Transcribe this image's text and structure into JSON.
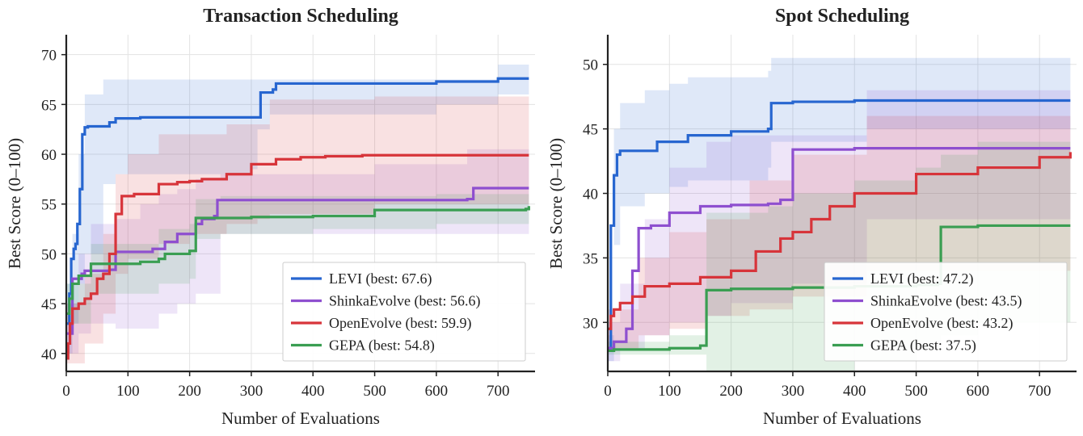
{
  "chart_data": [
    {
      "type": "line",
      "title": "Transaction Scheduling",
      "xlabel": "Number of Evaluations",
      "ylabel": "Best Score (0–100)",
      "xlim": [
        0,
        760
      ],
      "ylim": [
        38.2,
        72.0
      ],
      "xticks": [
        0,
        100,
        200,
        300,
        400,
        500,
        600,
        700
      ],
      "yticks": [
        40,
        45,
        50,
        55,
        60,
        65,
        70
      ],
      "grid": true,
      "legend_position": "lower-right",
      "series": [
        {
          "name": "LEVI (best: 67.6)",
          "color": "#2766d0",
          "x": [
            0,
            5,
            8,
            12,
            15,
            18,
            22,
            26,
            30,
            35,
            70,
            80,
            120,
            315,
            335,
            340,
            600,
            700,
            750
          ],
          "y": [
            43.0,
            46.0,
            49.5,
            50.5,
            51.0,
            53.0,
            56.5,
            62.0,
            62.7,
            62.8,
            63.2,
            63.6,
            63.7,
            66.2,
            66.5,
            67.1,
            67.3,
            67.6,
            67.6
          ],
          "band_x": [
            0,
            10,
            20,
            30,
            60,
            80,
            300,
            310,
            330,
            340,
            440,
            600,
            700,
            750
          ],
          "band_low": [
            40.0,
            43.0,
            47.0,
            50.0,
            57.0,
            58.0,
            58.5,
            62.5,
            64.0,
            64.0,
            64.0,
            65.0,
            66.0,
            66.5
          ],
          "band_high": [
            47.0,
            52.0,
            60.0,
            66.0,
            67.5,
            67.5,
            67.5,
            67.5,
            67.5,
            67.5,
            67.5,
            67.5,
            69.0,
            69.0
          ]
        },
        {
          "name": "ShinkaEvolve (best: 56.6)",
          "color": "#8e4fcf",
          "x": [
            0,
            10,
            25,
            30,
            70,
            80,
            140,
            160,
            180,
            210,
            220,
            240,
            245,
            650,
            660,
            750
          ],
          "y": [
            42.0,
            47.5,
            48.0,
            48.3,
            48.4,
            50.2,
            50.5,
            51.2,
            52.0,
            53.0,
            53.5,
            53.8,
            55.4,
            55.5,
            56.6,
            56.6
          ],
          "band_x": [
            0,
            20,
            40,
            80,
            120,
            150,
            180,
            210,
            240,
            250,
            500,
            650,
            750
          ],
          "band_low": [
            40.0,
            42.0,
            43.0,
            42.5,
            42.5,
            44.0,
            45.0,
            46.0,
            46.0,
            52.0,
            52.0,
            52.0,
            52.5
          ],
          "band_high": [
            45.0,
            50.0,
            53.0,
            53.5,
            55.0,
            56.0,
            56.5,
            57.5,
            57.5,
            58.0,
            59.0,
            60.5,
            61.0
          ]
        },
        {
          "name": "OpenEvolve (best: 59.9)",
          "color": "#d7343a",
          "x": [
            0,
            3,
            6,
            10,
            20,
            30,
            40,
            50,
            60,
            70,
            80,
            90,
            110,
            150,
            180,
            200,
            220,
            260,
            300,
            340,
            380,
            420,
            480,
            750
          ],
          "y": [
            39.5,
            41.0,
            43.0,
            44.5,
            45.0,
            45.5,
            46.0,
            47.5,
            48.0,
            50.0,
            54.0,
            55.8,
            56.0,
            57.0,
            57.2,
            57.3,
            57.5,
            58.0,
            59.0,
            59.5,
            59.7,
            59.8,
            59.9,
            59.9
          ],
          "band_x": [
            0,
            30,
            60,
            80,
            100,
            150,
            200,
            260,
            310,
            330,
            500,
            750
          ],
          "band_low": [
            39.0,
            41.0,
            44.0,
            48.0,
            49.5,
            51.0,
            52.0,
            53.0,
            53.5,
            54.0,
            55.0,
            55.5
          ],
          "band_high": [
            45.0,
            48.0,
            52.0,
            58.0,
            60.0,
            62.0,
            62.0,
            63.0,
            63.0,
            65.5,
            65.8,
            65.8
          ]
        },
        {
          "name": "GEPA (best: 54.8)",
          "color": "#3a9e52",
          "x": [
            0,
            5,
            10,
            20,
            40,
            60,
            100,
            120,
            150,
            160,
            200,
            210,
            300,
            400,
            500,
            745,
            750
          ],
          "y": [
            44.0,
            45.5,
            47.0,
            47.8,
            49.0,
            49.0,
            49.0,
            49.2,
            49.5,
            50.0,
            50.3,
            53.6,
            53.7,
            53.8,
            54.4,
            54.5,
            54.8
          ],
          "band_x": [
            0,
            40,
            100,
            150,
            200,
            210,
            250,
            400,
            600,
            750
          ],
          "band_low": [
            43.0,
            46.0,
            46.0,
            47.0,
            47.5,
            51.5,
            52.0,
            52.5,
            53.0,
            53.5
          ],
          "band_high": [
            47.0,
            51.0,
            51.0,
            52.5,
            53.0,
            55.5,
            55.8,
            55.8,
            56.0,
            56.0
          ]
        }
      ]
    },
    {
      "type": "line",
      "title": "Spot Scheduling",
      "xlabel": "Number of Evaluations",
      "ylabel": "Best Score (0–100)",
      "xlim": [
        0,
        760
      ],
      "ylim": [
        26.2,
        52.3
      ],
      "xticks": [
        0,
        100,
        200,
        300,
        400,
        500,
        600,
        700
      ],
      "yticks": [
        30,
        35,
        40,
        45,
        50
      ],
      "grid": true,
      "legend_position": "lower-right",
      "series": [
        {
          "name": "LEVI (best: 47.2)",
          "color": "#2766d0",
          "x": [
            0,
            5,
            10,
            15,
            20,
            80,
            130,
            200,
            260,
            265,
            300,
            400,
            750
          ],
          "y": [
            28.0,
            37.5,
            41.4,
            43.0,
            43.3,
            44.0,
            44.5,
            44.8,
            45.0,
            47.0,
            47.1,
            47.2,
            47.2
          ],
          "band_x": [
            0,
            10,
            20,
            60,
            100,
            130,
            260,
            265,
            420,
            750
          ],
          "band_low": [
            27.0,
            36.0,
            39.0,
            40.0,
            40.5,
            41.0,
            42.0,
            44.0,
            45.0,
            45.5
          ],
          "band_high": [
            29.0,
            45.0,
            47.0,
            48.0,
            48.5,
            49.0,
            49.5,
            50.5,
            50.5,
            50.7
          ]
        },
        {
          "name": "ShinkaEvolve (best: 43.5)",
          "color": "#8e4fcf",
          "x": [
            0,
            10,
            30,
            40,
            50,
            70,
            100,
            150,
            200,
            260,
            280,
            300,
            400,
            750
          ],
          "y": [
            28.0,
            28.5,
            29.5,
            34.0,
            37.3,
            37.5,
            38.5,
            39.0,
            39.1,
            39.2,
            39.5,
            43.4,
            43.5,
            43.5
          ],
          "band_x": [
            0,
            20,
            60,
            100,
            160,
            200,
            300,
            420,
            750
          ],
          "band_low": [
            27.0,
            28.0,
            29.0,
            30.0,
            30.5,
            31.5,
            33.0,
            38.0,
            40.0
          ],
          "band_high": [
            30.0,
            33.0,
            38.0,
            42.0,
            44.0,
            44.5,
            44.5,
            48.0,
            50.5
          ]
        },
        {
          "name": "OpenEvolve (best: 43.2)",
          "color": "#d7343a",
          "x": [
            0,
            5,
            10,
            20,
            40,
            60,
            100,
            150,
            200,
            240,
            280,
            300,
            330,
            360,
            400,
            500,
            600,
            700,
            750
          ],
          "y": [
            29.5,
            30.5,
            31.0,
            31.5,
            32.0,
            32.8,
            33.0,
            33.5,
            34.0,
            35.5,
            36.5,
            37.0,
            38.0,
            39.0,
            40.0,
            41.5,
            42.0,
            42.8,
            43.2
          ],
          "band_x": [
            0,
            50,
            100,
            160,
            230,
            300,
            420,
            750
          ],
          "band_low": [
            28.0,
            29.0,
            29.5,
            30.5,
            31.0,
            32.0,
            34.0,
            38.0
          ],
          "band_high": [
            31.0,
            35.0,
            37.0,
            38.0,
            41.0,
            43.0,
            46.0,
            49.0
          ]
        },
        {
          "name": "GEPA (best: 37.5)",
          "color": "#3a9e52",
          "x": [
            0,
            10,
            40,
            100,
            150,
            160,
            200,
            300,
            400,
            500,
            535,
            540,
            600,
            750
          ],
          "y": [
            27.8,
            27.9,
            27.9,
            28.0,
            28.2,
            32.5,
            32.6,
            32.7,
            32.8,
            32.9,
            33.0,
            37.4,
            37.5,
            37.5
          ],
          "band_x": [
            0,
            100,
            160,
            200,
            260,
            300,
            400,
            500,
            540,
            600,
            750
          ],
          "band_low": [
            27.5,
            27.5,
            24.0,
            24.0,
            25.0,
            26.0,
            27.0,
            28.0,
            29.0,
            30.0,
            30.5
          ],
          "band_high": [
            28.5,
            29.0,
            38.5,
            38.5,
            39.0,
            40.0,
            41.0,
            42.0,
            43.0,
            44.0,
            44.5
          ]
        }
      ]
    }
  ]
}
